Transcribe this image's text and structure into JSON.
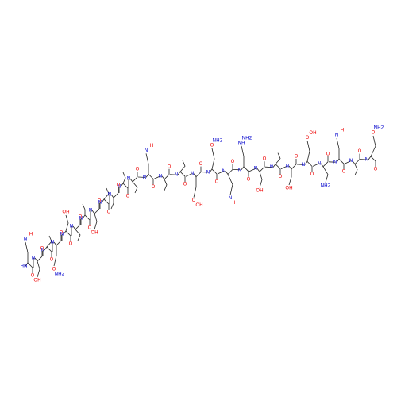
{
  "molecule": {
    "residues": [
      {
        "n": "HN",
        "o": "O",
        "side": [
          "N",
          "H"
        ]
      },
      {
        "n": "N",
        "o": "O",
        "side": [
          "OH"
        ]
      },
      {
        "n": "N",
        "o": "O",
        "side": []
      },
      {
        "n": "N",
        "o": "O",
        "side": [
          "O",
          "NH2"
        ]
      },
      {
        "n": "N",
        "o": "O",
        "side": [
          "OH"
        ]
      },
      {
        "n": "N",
        "o": "O",
        "side": []
      },
      {
        "n": "N",
        "o": "O",
        "side": []
      },
      {
        "n": "N",
        "o": "O",
        "side": [
          "OH"
        ]
      },
      {
        "n": "N",
        "o": "O",
        "side": []
      },
      {
        "n": "N",
        "o": "O",
        "side": []
      },
      {
        "n": "N",
        "o": "O",
        "side": []
      },
      {
        "n": "N",
        "o": "O",
        "side": []
      },
      {
        "n": "N",
        "o": "O",
        "side": [
          "N",
          "H"
        ]
      },
      {
        "n": "N",
        "o": "O",
        "side": []
      },
      {
        "n": "N",
        "o": "O",
        "side": []
      },
      {
        "n": "N",
        "o": "O",
        "side": [
          "O",
          "OH"
        ]
      },
      {
        "n": "N",
        "o": "O",
        "side": [
          "O",
          "NH2"
        ]
      },
      {
        "n": "N",
        "o": "O",
        "side": [
          "N",
          "H"
        ]
      },
      {
        "n": "N",
        "o": "O",
        "side": [
          "NH",
          "NH2"
        ]
      },
      {
        "n": "N",
        "o": "O",
        "side": [
          "OH"
        ]
      },
      {
        "n": "N",
        "o": "O",
        "side": []
      },
      {
        "n": "N",
        "o": "O",
        "side": [
          "OH"
        ]
      },
      {
        "n": "N",
        "o": "O",
        "side": [
          "O",
          "OH"
        ]
      },
      {
        "n": "N",
        "o": "O",
        "side": [
          "NH2"
        ]
      },
      {
        "n": "N",
        "o": "O",
        "side": [
          "N",
          "H"
        ]
      },
      {
        "n": "N",
        "o": "O",
        "side": []
      },
      {
        "n": "N",
        "o": "O",
        "side": [
          "O",
          "NH2"
        ]
      }
    ]
  }
}
